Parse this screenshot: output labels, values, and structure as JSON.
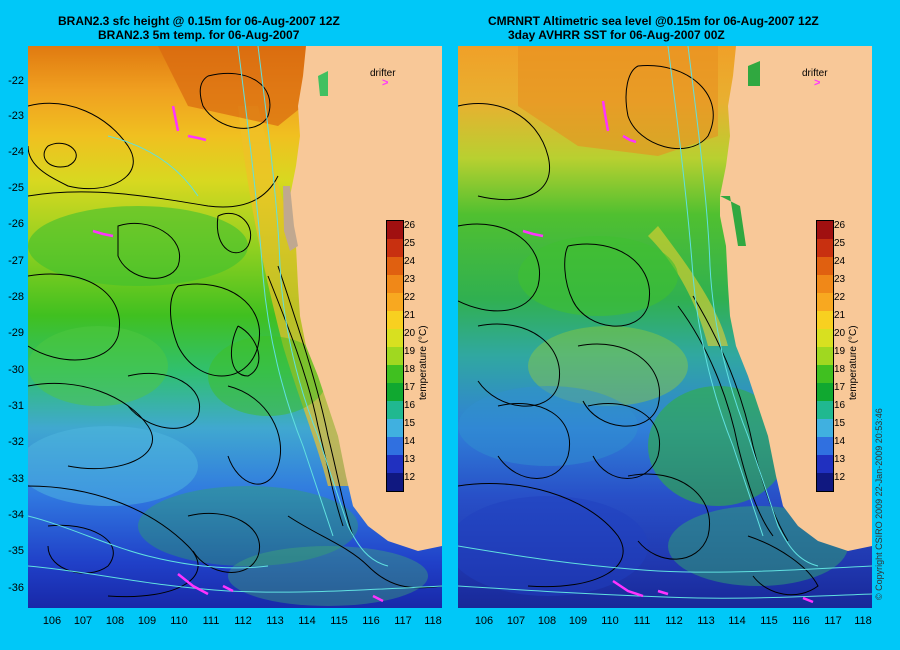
{
  "left_panel": {
    "title_line1": "BRAN2.3 sfc height @ 0.15m for 06-Aug-2007 12Z",
    "title_line2": "BRAN2.3 5m temp. for 06-Aug-2007"
  },
  "right_panel": {
    "title_line1": "CMRNRT Altimetric sea level  @0.15m  for 06-Aug-2007 12Z",
    "title_line2": "3day AVHRR SST for 06-Aug-2007 00Z"
  },
  "latitude_labels": [
    "-22",
    "-23",
    "-24",
    "-25",
    "-26",
    "-27",
    "-28",
    "-29",
    "-30",
    "-31",
    "-32",
    "-33",
    "-34",
    "-35",
    "-36"
  ],
  "longitude_labels": [
    "106",
    "107",
    "108",
    "109",
    "110",
    "111",
    "112",
    "113",
    "114",
    "115",
    "116",
    "117",
    "118"
  ],
  "drifter_label": "drifter",
  "drifter_symbol": ">",
  "colorbar": {
    "title": "temperature (°C)",
    "ticks": [
      "26",
      "25",
      "24",
      "23",
      "22",
      "21",
      "20",
      "19",
      "18",
      "17",
      "16",
      "15",
      "14",
      "13",
      "12"
    ],
    "colors": [
      "#a01010",
      "#c83010",
      "#e06010",
      "#f08818",
      "#f8a820",
      "#f8d020",
      "#d8e020",
      "#a0d820",
      "#40c020",
      "#10a830",
      "#20b890",
      "#40b0e0",
      "#3070e0",
      "#2030c0",
      "#101880"
    ]
  },
  "copyright": "© Copyright CSIRO 2009   22-Jan-2009 20:53:46"
}
